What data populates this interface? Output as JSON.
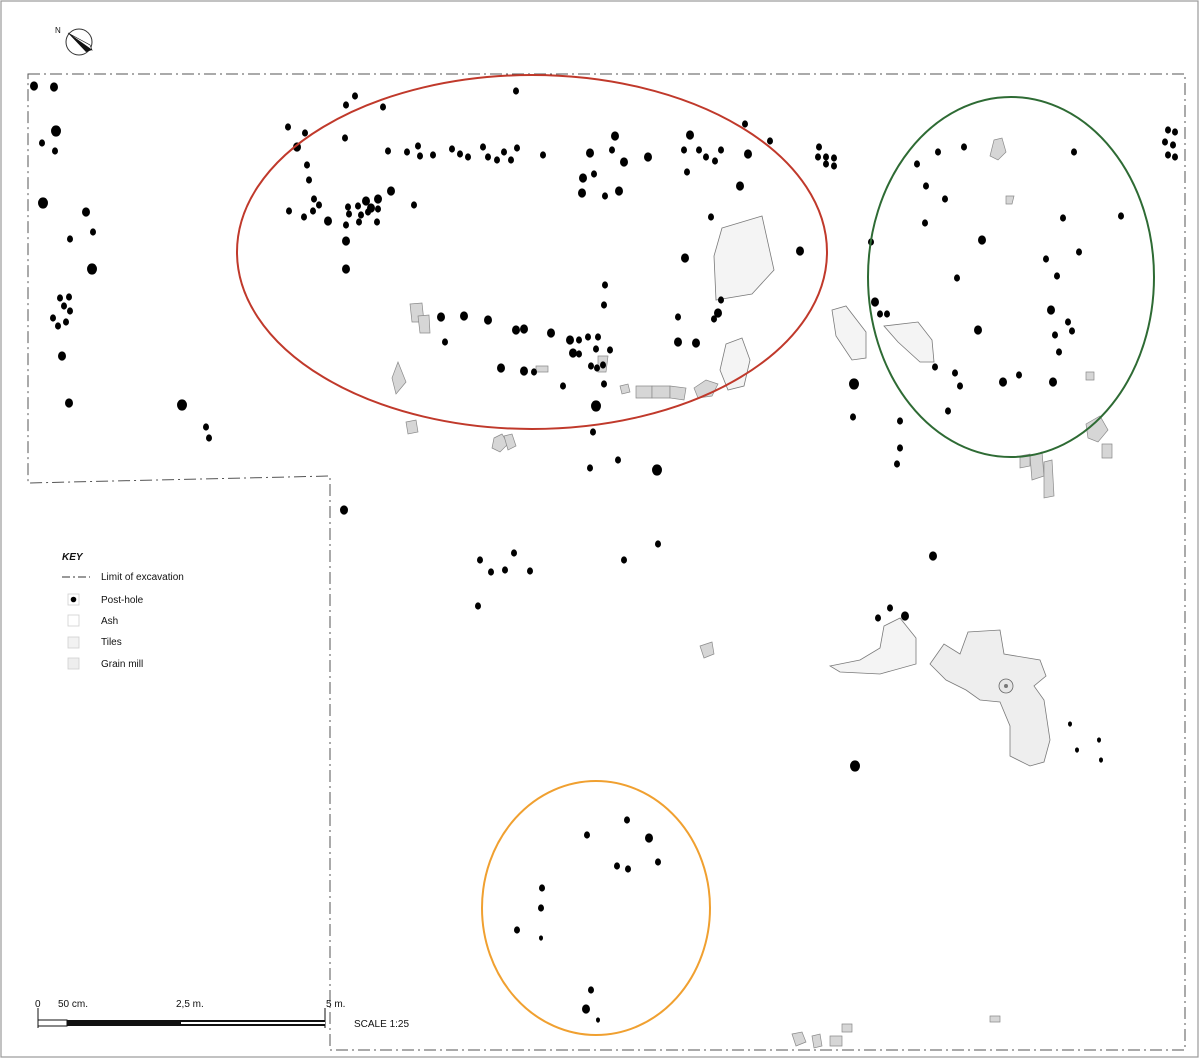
{
  "north_label": "N",
  "key": {
    "title": "KEY",
    "items": [
      {
        "label": "Limit of excavation",
        "symbol": "dash-dot-line"
      },
      {
        "label": "Post-hole",
        "symbol": "black-dot"
      },
      {
        "label": "Ash",
        "symbol": "light-square"
      },
      {
        "label": "Tiles",
        "symbol": "light-square"
      },
      {
        "label": "Grain mill",
        "symbol": "light-square"
      }
    ]
  },
  "scale_bar": {
    "ticks": [
      "0",
      "50 cm.",
      "2,5 m.",
      "5 m."
    ],
    "scale_text": "SCALE 1:25"
  },
  "clusters": [
    {
      "id": "cluster-red",
      "color": "#c0392b"
    },
    {
      "id": "cluster-green",
      "color": "#2e6b34"
    },
    {
      "id": "cluster-orange",
      "color": "#f0a030"
    }
  ]
}
